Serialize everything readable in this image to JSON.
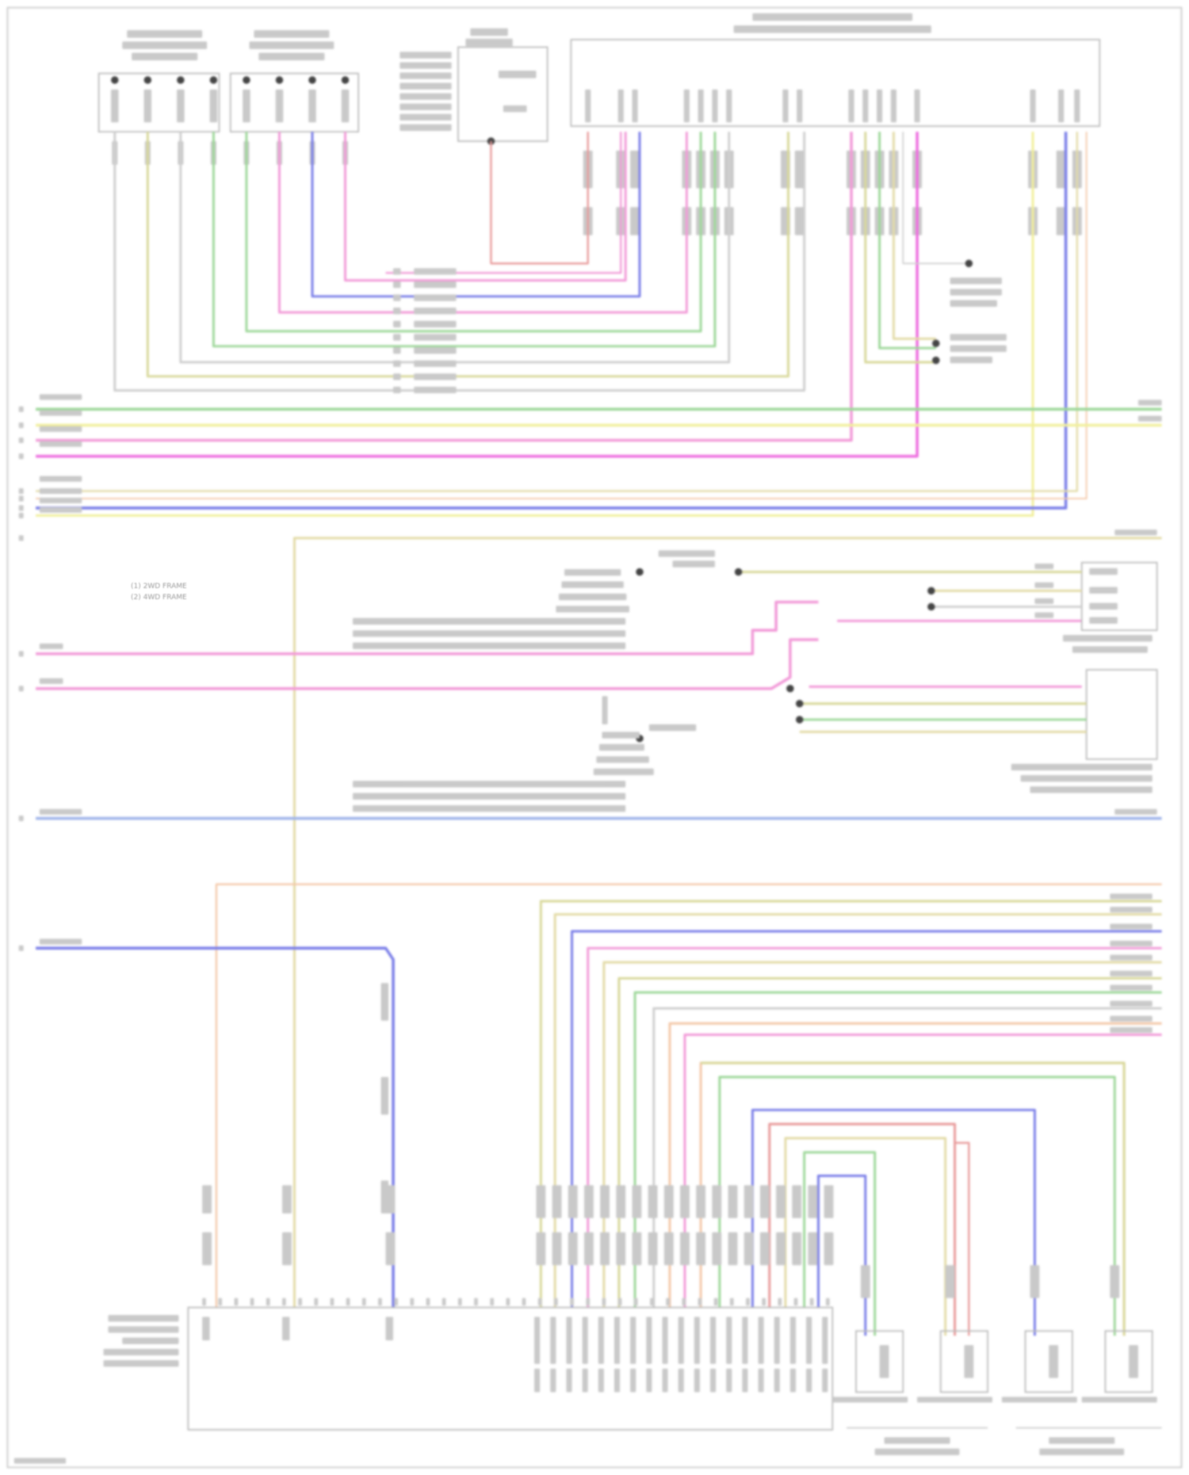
{
  "diagram": {
    "legend": [
      {
        "symbol": "(1)",
        "text": "2WD FRAME"
      },
      {
        "symbol": "(2)",
        "text": "4WD FRAME"
      }
    ],
    "footer": "",
    "wire_colors": {
      "green": "#9ed89a",
      "yellow": "#f1ef9c",
      "pink": "#f29ad8",
      "magenta": "#ee6fe0",
      "tan": "#e3dba7",
      "blue": "#7a7ee8",
      "lightblue": "#9fb4ea",
      "orange": "#f4c8a8",
      "red": "#e89a9a",
      "olive": "#d8d89a",
      "gray": "#cfcfcf",
      "dark": "#444444"
    }
  }
}
